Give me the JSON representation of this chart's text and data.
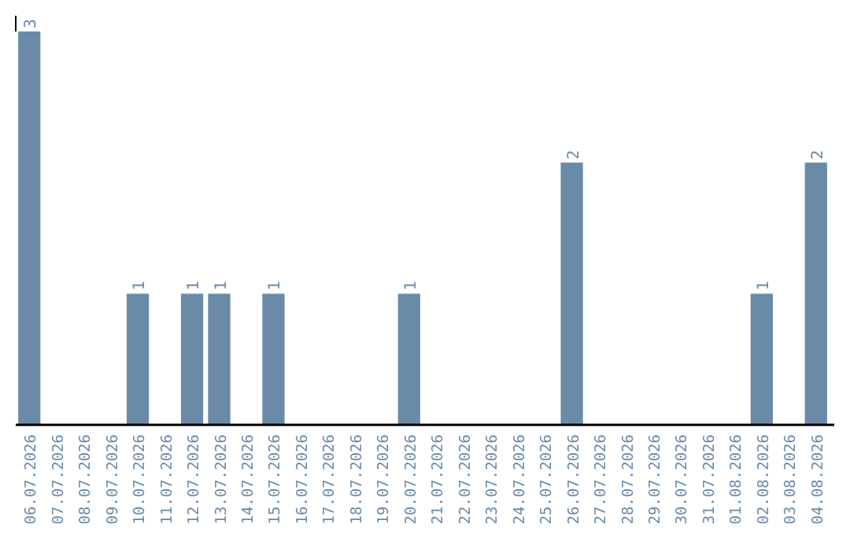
{
  "chart_data": {
    "type": "bar",
    "categories": [
      "06.07.2026",
      "07.07.2026",
      "08.07.2026",
      "09.07.2026",
      "10.07.2026",
      "11.07.2026",
      "12.07.2026",
      "13.07.2026",
      "14.07.2026",
      "15.07.2026",
      "16.07.2026",
      "17.07.2026",
      "18.07.2026",
      "19.07.2026",
      "20.07.2026",
      "21.07.2026",
      "22.07.2026",
      "23.07.2026",
      "24.07.2026",
      "25.07.2026",
      "26.07.2026",
      "27.07.2026",
      "28.07.2026",
      "29.07.2026",
      "30.07.2026",
      "31.07.2026",
      "01.08.2026",
      "02.08.2026",
      "03.08.2026",
      "04.08.2026"
    ],
    "values": [
      3,
      0,
      0,
      0,
      1,
      0,
      1,
      1,
      0,
      1,
      0,
      0,
      0,
      0,
      1,
      0,
      0,
      0,
      0,
      0,
      2,
      0,
      0,
      0,
      0,
      0,
      0,
      1,
      0,
      2
    ],
    "color": "#6a8ba8",
    "ylim": [
      0,
      3
    ],
    "value_labels": [
      "3",
      null,
      null,
      null,
      "1",
      null,
      "1",
      "1",
      null,
      "1",
      null,
      null,
      null,
      null,
      "1",
      null,
      null,
      null,
      null,
      null,
      "2",
      null,
      null,
      null,
      null,
      null,
      null,
      "1",
      null,
      "2"
    ],
    "tick_labels": "x"
  }
}
